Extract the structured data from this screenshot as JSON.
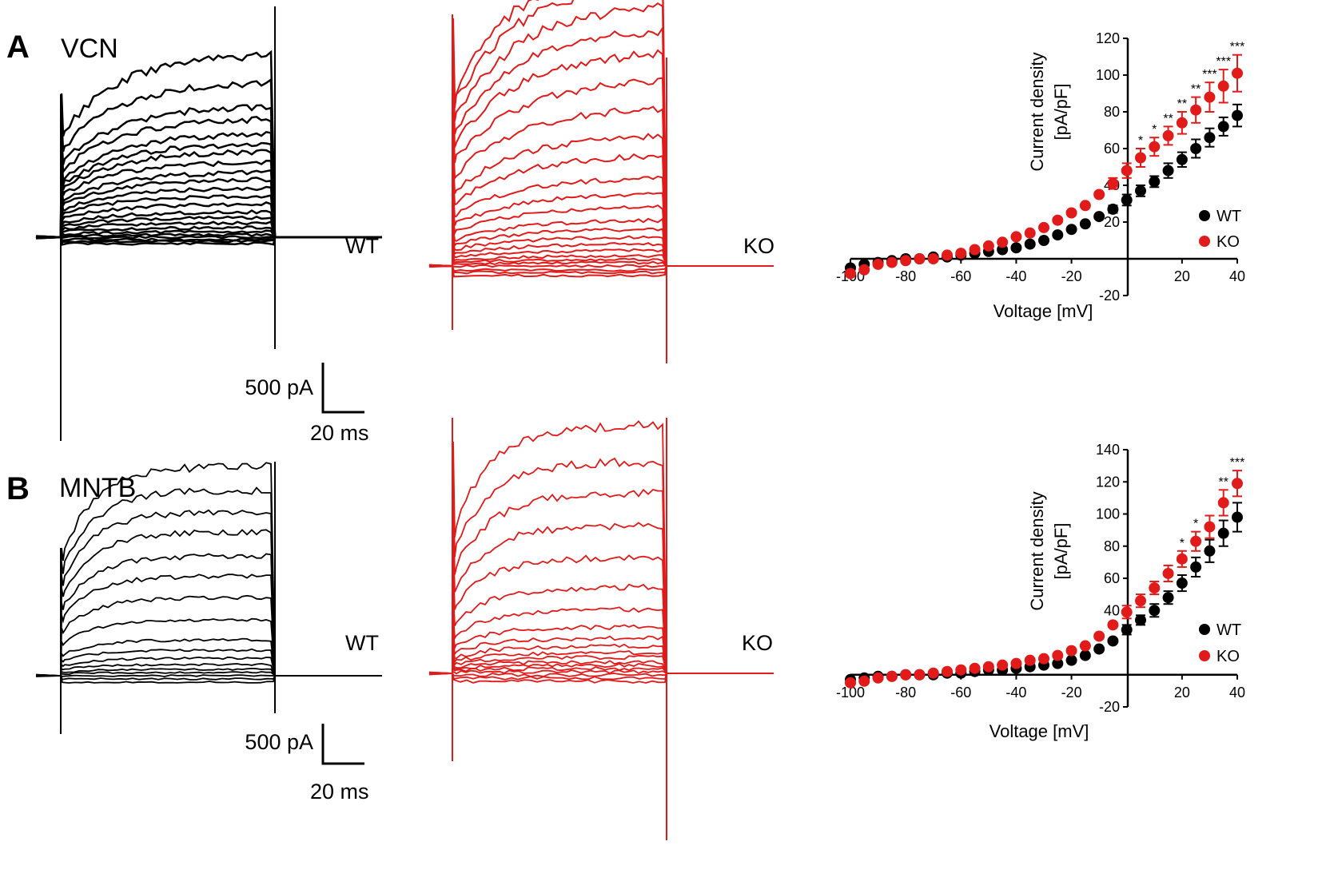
{
  "colors": {
    "wt": "#000000",
    "ko": "#e11a1a"
  },
  "panels": [
    {
      "letter": "A",
      "region": "VCN",
      "wt_label": "WT",
      "ko_label": "KO",
      "scale_current": "500 pA",
      "scale_time": "20 ms",
      "chart_data": {
        "type": "scatter",
        "title": "",
        "xlabel": "Voltage [mV]",
        "ylabel_line1": "Current density",
        "ylabel_line2": "[pA/pF]",
        "xlim": [
          -100,
          40
        ],
        "ylim": [
          -20,
          120
        ],
        "x_ticks": [
          -100,
          -80,
          -60,
          -40,
          -20,
          20,
          40
        ],
        "y_ticks": [
          -20,
          20,
          40,
          60,
          80,
          100,
          120
        ],
        "x": [
          -100,
          -95,
          -90,
          -85,
          -80,
          -75,
          -70,
          -65,
          -60,
          -55,
          -50,
          -45,
          -40,
          -35,
          -30,
          -25,
          -20,
          -15,
          -10,
          -5,
          0,
          5,
          10,
          15,
          20,
          25,
          30,
          35,
          40
        ],
        "series": [
          {
            "name": "WT",
            "values": [
              -5,
              -3,
              -2,
              -1,
              0,
              0,
              1,
              1,
              2,
              3,
              4,
              5,
              6,
              8,
              10,
              13,
              16,
              19,
              23,
              27,
              32,
              37,
              42,
              48,
              54,
              60,
              66,
              72,
              78
            ],
            "errors": [
              0,
              0,
              0,
              0,
              0,
              0,
              0,
              0,
              0,
              0,
              0,
              0,
              0,
              0,
              0,
              0,
              0,
              0,
              0,
              2,
              3,
              3,
              3,
              4,
              4,
              5,
              5,
              5,
              6
            ]
          },
          {
            "name": "KO",
            "values": [
              -8,
              -6,
              -3,
              -2,
              -1,
              0,
              0,
              2,
              3,
              5,
              7,
              9,
              12,
              14,
              17,
              21,
              25,
              29,
              35,
              41,
              48,
              55,
              61,
              67,
              74,
              81,
              88,
              94,
              101
            ],
            "errors": [
              0,
              0,
              0,
              0,
              0,
              0,
              0,
              0,
              0,
              0,
              0,
              0,
              0,
              0,
              0,
              0,
              0,
              0,
              0,
              3,
              4,
              5,
              5,
              5,
              6,
              7,
              8,
              9,
              10
            ]
          }
        ],
        "annotations": [
          {
            "x": 5,
            "text": "*"
          },
          {
            "x": 10,
            "text": "*"
          },
          {
            "x": 15,
            "text": "**"
          },
          {
            "x": 20,
            "text": "**"
          },
          {
            "x": 25,
            "text": "**"
          },
          {
            "x": 30,
            "text": "***"
          },
          {
            "x": 35,
            "text": "***"
          },
          {
            "x": 40,
            "text": "***"
          }
        ],
        "legend": [
          "WT",
          "KO"
        ],
        "legend_position": "bottom-right"
      }
    },
    {
      "letter": "B",
      "region": "MNTB",
      "wt_label": "WT",
      "ko_label": "KO",
      "scale_current": "500 pA",
      "scale_time": "20 ms",
      "chart_data": {
        "type": "scatter",
        "title": "",
        "xlabel": "Voltage [mV]",
        "ylabel_line1": "Current density",
        "ylabel_line2": "[pA/pF]",
        "xlim": [
          -100,
          40
        ],
        "ylim": [
          -20,
          140
        ],
        "x_ticks": [
          -100,
          -80,
          -60,
          -40,
          -20,
          20,
          40
        ],
        "y_ticks": [
          -20,
          40,
          60,
          80,
          100,
          120,
          140
        ],
        "x": [
          -100,
          -95,
          -90,
          -85,
          -80,
          -75,
          -70,
          -65,
          -60,
          -55,
          -50,
          -45,
          -40,
          -35,
          -30,
          -25,
          -20,
          -15,
          -10,
          -5,
          0,
          5,
          10,
          15,
          20,
          25,
          30,
          35,
          40
        ],
        "series": [
          {
            "name": "WT",
            "values": [
              -3,
              -2,
              -1,
              -1,
              0,
              0,
              0,
              1,
              1,
              2,
              3,
              3,
              4,
              5,
              6,
              7,
              9,
              12,
              16,
              21,
              28,
              34,
              40,
              48,
              57,
              67,
              77,
              88,
              98
            ],
            "errors": [
              0,
              0,
              0,
              0,
              0,
              0,
              0,
              0,
              0,
              0,
              0,
              0,
              0,
              0,
              0,
              0,
              0,
              0,
              0,
              0,
              3,
              3,
              4,
              4,
              5,
              6,
              7,
              8,
              9
            ]
          },
          {
            "name": "KO",
            "values": [
              -5,
              -4,
              -2,
              -1,
              0,
              0,
              1,
              2,
              3,
              4,
              5,
              6,
              7,
              9,
              10,
              12,
              15,
              18,
              24,
              31,
              39,
              46,
              54,
              63,
              72,
              83,
              92,
              107,
              119
            ],
            "errors": [
              0,
              0,
              0,
              0,
              0,
              0,
              0,
              0,
              0,
              0,
              0,
              0,
              0,
              0,
              0,
              0,
              0,
              0,
              0,
              0,
              4,
              4,
              4,
              5,
              5,
              6,
              7,
              8,
              8
            ]
          }
        ],
        "annotations": [
          {
            "x": 20,
            "text": "*"
          },
          {
            "x": 25,
            "text": "*"
          },
          {
            "x": 35,
            "text": "**"
          },
          {
            "x": 40,
            "text": "***"
          }
        ],
        "legend": [
          "WT",
          "KO"
        ],
        "legend_position": "bottom-right"
      }
    }
  ]
}
